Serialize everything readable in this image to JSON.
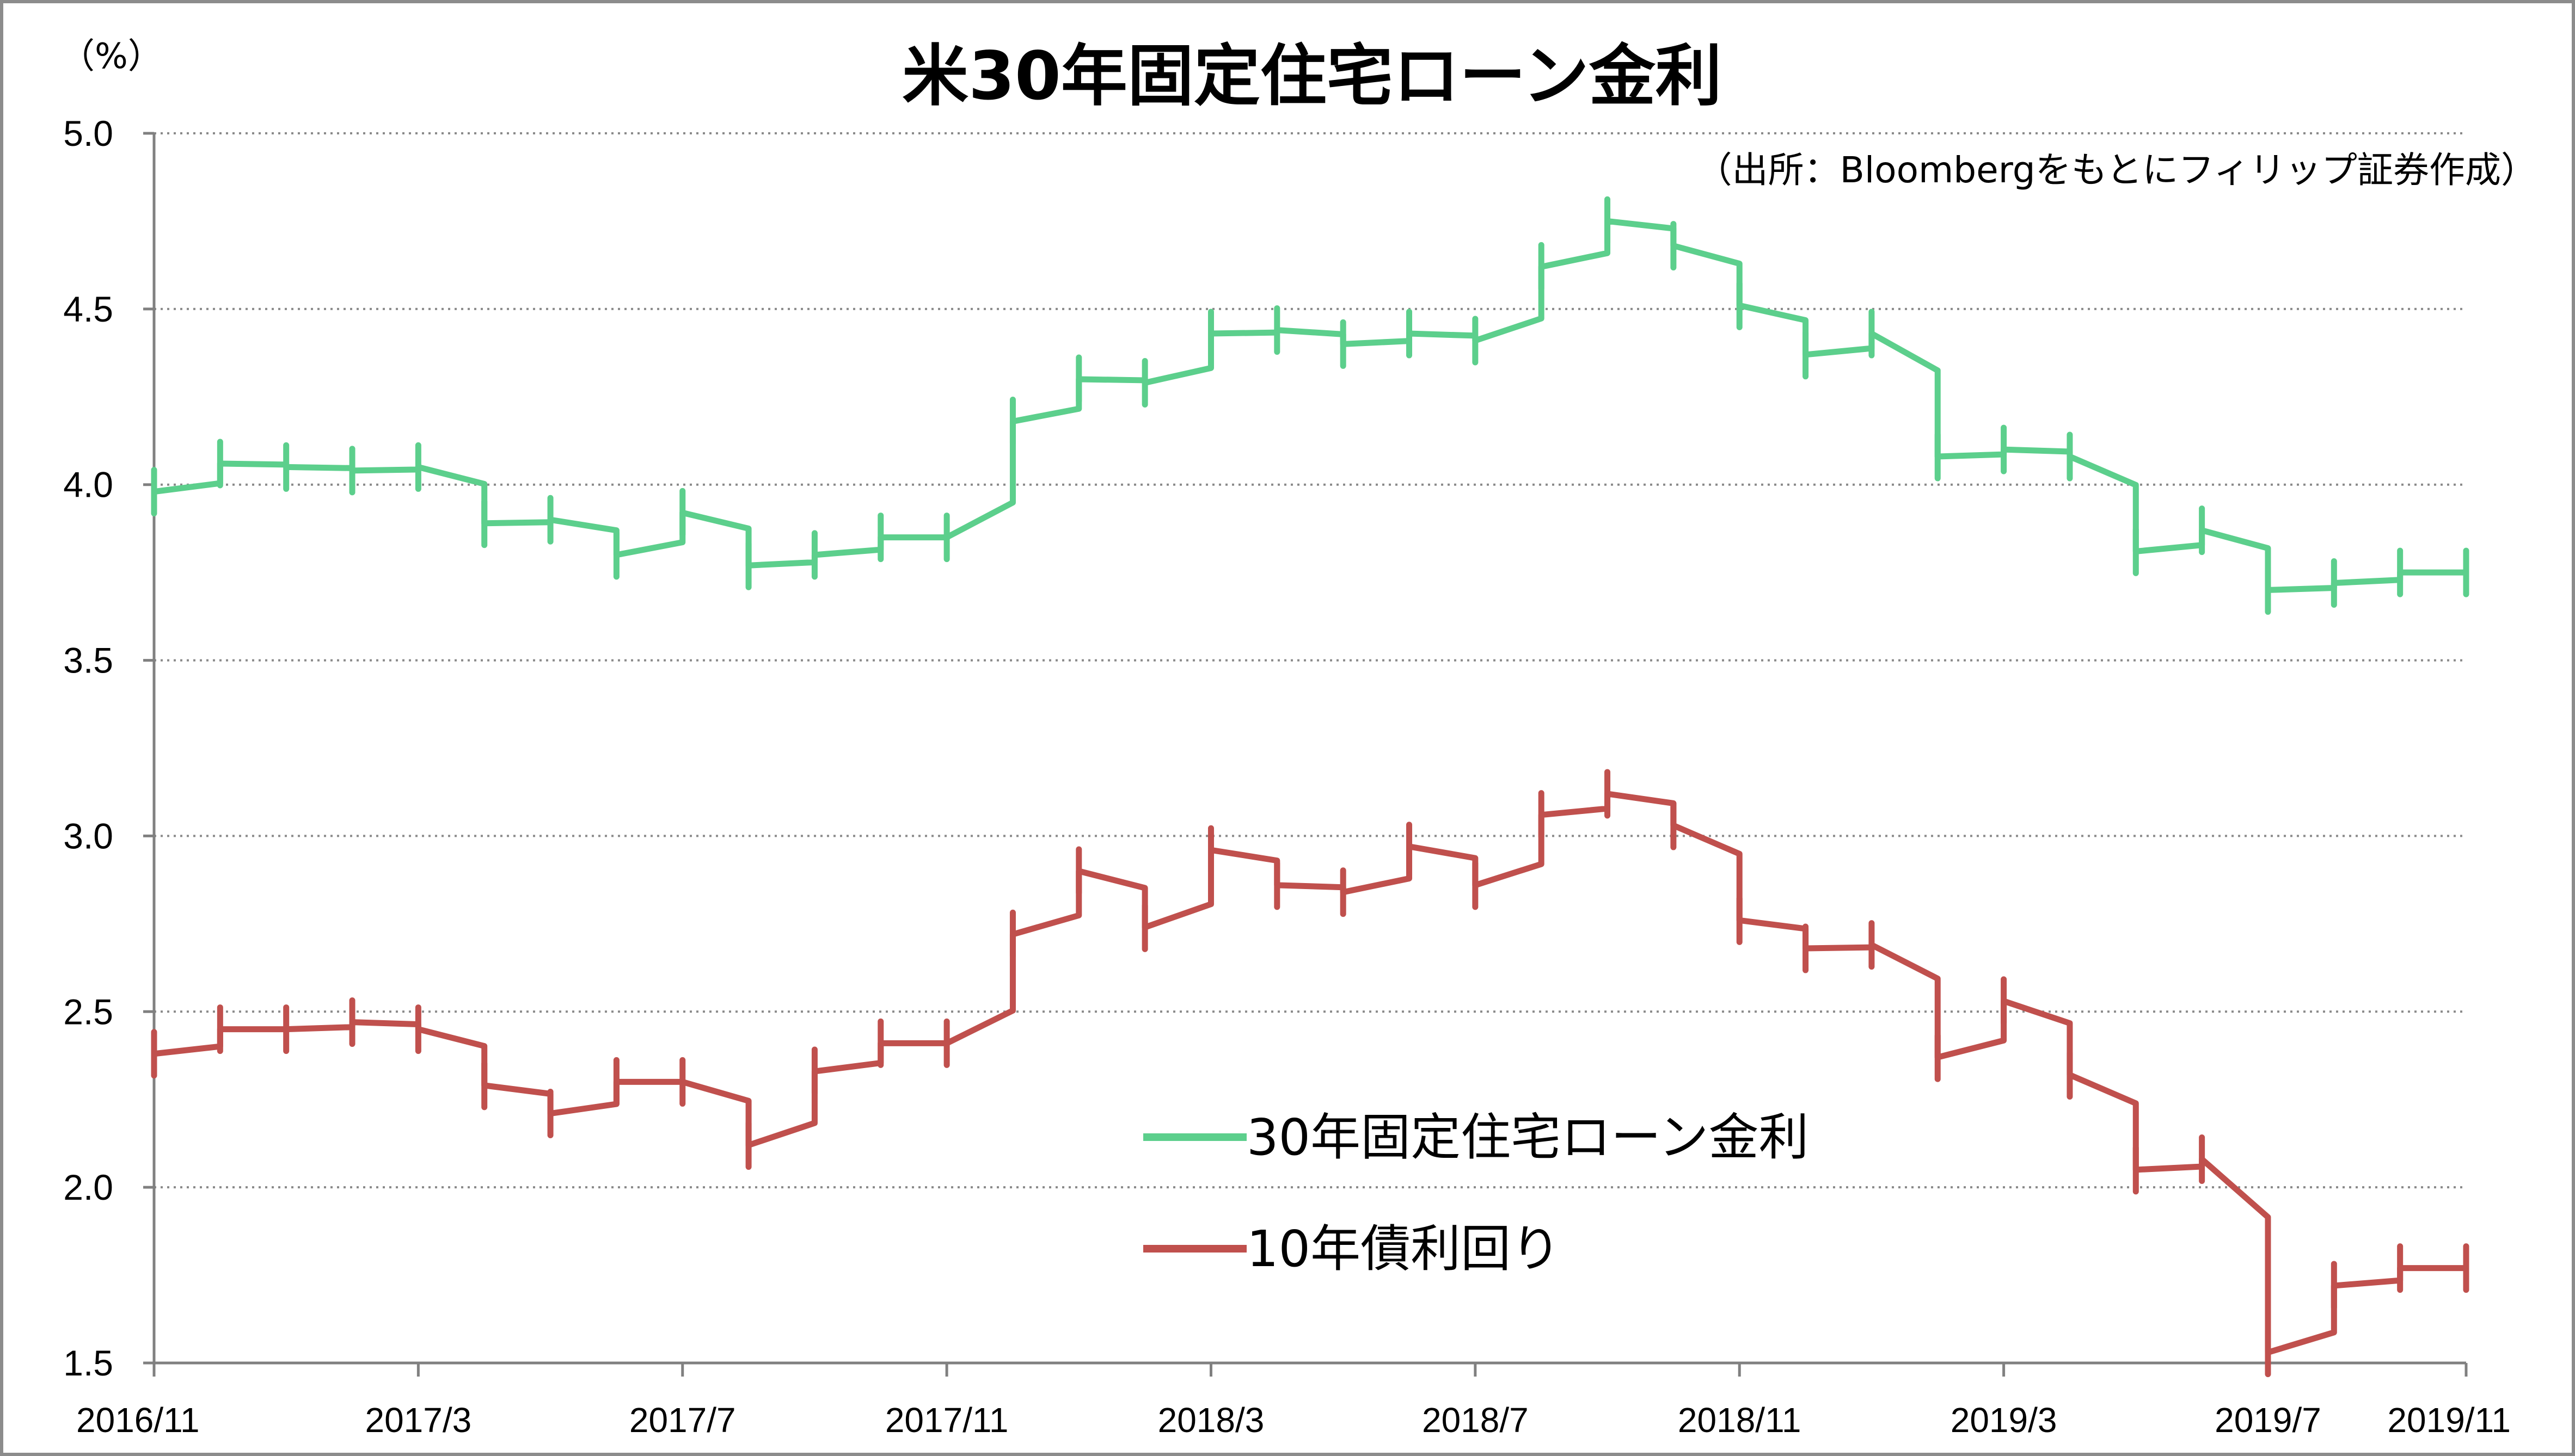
{
  "chart_data": {
    "type": "line",
    "title": "米30年固定住宅ローン金利",
    "subtitle": "（出所：Bloombergをもとにフィリップ証券作成）",
    "ylabel": "（%）",
    "xlabel": "",
    "ylim": [
      1.5,
      5.0
    ],
    "yticks": [
      "5.0",
      "4.5",
      "4.0",
      "3.5",
      "3.0",
      "2.5",
      "2.0",
      "1.5"
    ],
    "xticks": [
      "2016/11",
      "2017/3",
      "2017/7",
      "2017/11",
      "2018/3",
      "2018/7",
      "2018/11",
      "2019/3",
      "2019/7",
      "2019/11"
    ],
    "grid": "horizontal dotted",
    "legend_position": "center-bottom",
    "series": [
      {
        "name": "30年固定住宅ローン金利",
        "color": "#5ccf8c",
        "values": [
          [
            0,
            3.98
          ],
          [
            1,
            4.06
          ],
          [
            2,
            4.05
          ],
          [
            3,
            4.04
          ],
          [
            4,
            4.05
          ],
          [
            5,
            3.89
          ],
          [
            6,
            3.9
          ],
          [
            7,
            3.8
          ],
          [
            8,
            3.92
          ],
          [
            9,
            3.77
          ],
          [
            10,
            3.8
          ],
          [
            11,
            3.85
          ],
          [
            12,
            3.85
          ],
          [
            13,
            4.18
          ],
          [
            14,
            4.3
          ],
          [
            15,
            4.29
          ],
          [
            16,
            4.43
          ],
          [
            17,
            4.44
          ],
          [
            18,
            4.4
          ],
          [
            19,
            4.43
          ],
          [
            20,
            4.41
          ],
          [
            21,
            4.62
          ],
          [
            22,
            4.75
          ],
          [
            23,
            4.68
          ],
          [
            24,
            4.51
          ],
          [
            25,
            4.37
          ],
          [
            26,
            4.43
          ],
          [
            27,
            4.08
          ],
          [
            28,
            4.1
          ],
          [
            29,
            4.08
          ],
          [
            30,
            3.81
          ],
          [
            31,
            3.87
          ],
          [
            32,
            3.7
          ],
          [
            33,
            3.72
          ],
          [
            34,
            3.75
          ],
          [
            35,
            3.75
          ]
        ]
      },
      {
        "name": "10年債利回り",
        "color": "#c0504d",
        "values": [
          [
            0,
            2.38
          ],
          [
            1,
            2.45
          ],
          [
            2,
            2.45
          ],
          [
            3,
            2.47
          ],
          [
            4,
            2.45
          ],
          [
            5,
            2.29
          ],
          [
            6,
            2.21
          ],
          [
            7,
            2.3
          ],
          [
            8,
            2.3
          ],
          [
            9,
            2.12
          ],
          [
            10,
            2.33
          ],
          [
            11,
            2.41
          ],
          [
            12,
            2.41
          ],
          [
            13,
            2.72
          ],
          [
            14,
            2.9
          ],
          [
            15,
            2.74
          ],
          [
            16,
            2.96
          ],
          [
            17,
            2.86
          ],
          [
            18,
            2.84
          ],
          [
            19,
            2.97
          ],
          [
            20,
            2.86
          ],
          [
            21,
            3.06
          ],
          [
            22,
            3.12
          ],
          [
            23,
            3.03
          ],
          [
            24,
            2.76
          ],
          [
            25,
            2.68
          ],
          [
            26,
            2.69
          ],
          [
            27,
            2.37
          ],
          [
            28,
            2.53
          ],
          [
            29,
            2.32
          ],
          [
            30,
            2.05
          ],
          [
            31,
            2.08
          ],
          [
            32,
            1.53
          ],
          [
            33,
            1.72
          ],
          [
            34,
            1.77
          ],
          [
            35,
            1.77
          ]
        ]
      }
    ]
  }
}
